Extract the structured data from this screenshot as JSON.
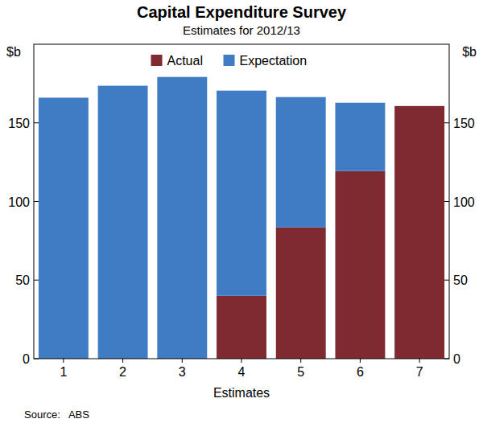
{
  "chart_data": {
    "type": "bar",
    "title": "Capital Expenditure Survey",
    "subtitle": "Estimates for 2012/13",
    "x_label": "Estimates",
    "y_label": "$b",
    "source": "Source:   ABS",
    "categories": [
      "1",
      "2",
      "3",
      "4",
      "5",
      "6",
      "7"
    ],
    "series": [
      {
        "name": "Actual",
        "color": "#7f2a30",
        "values": [
          0,
          0,
          0,
          40,
          83.5,
          119.3,
          160.7
        ]
      },
      {
        "name": "Expectation",
        "color": "#3f7cc4",
        "values": [
          166,
          173.6,
          179.2,
          130.5,
          82.9,
          43.5,
          0
        ]
      }
    ],
    "stacked": true,
    "legend": "top",
    "grid": false,
    "ylim": [
      0,
      200
    ],
    "yticks": [
      0,
      50,
      100,
      150
    ]
  }
}
